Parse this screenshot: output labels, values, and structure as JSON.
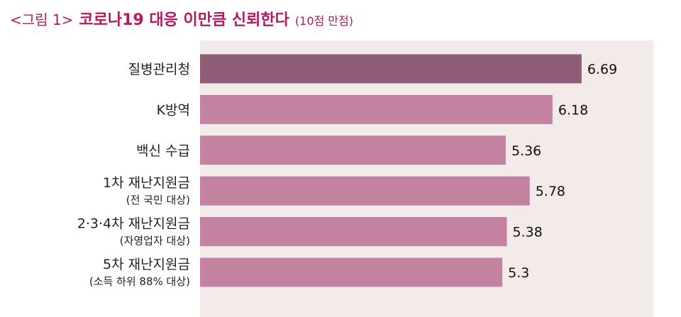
{
  "title": {
    "prefix": "<그림 1>",
    "main": "코로나19 대응 이만큼 신뢰한다",
    "suffix": "(10점 만점)"
  },
  "colors": {
    "title": "#b5195f",
    "bar_highlight": "#8f5e76",
    "bar_default": "#c482a1",
    "plot_background": "#f2ebea"
  },
  "chart_data": {
    "type": "bar",
    "orientation": "horizontal",
    "categories": [
      [
        "질병관리청"
      ],
      [
        "K방역"
      ],
      [
        "백신 수급"
      ],
      [
        "1차 재난지원금",
        "(전 국민 대상)"
      ],
      [
        "2·3·4차 재난지원금",
        "(자영업자 대상)"
      ],
      [
        "5차 재난지원금",
        "(소득 하위 88% 대상)"
      ]
    ],
    "values": [
      6.69,
      6.18,
      5.36,
      5.78,
      5.38,
      5.3
    ],
    "value_labels": [
      "6.69",
      "6.18",
      "5.36",
      "5.78",
      "5.38",
      "5.3"
    ],
    "highlight_index": 0,
    "xlim": [
      0,
      10
    ],
    "grid": false,
    "legend": "none"
  }
}
